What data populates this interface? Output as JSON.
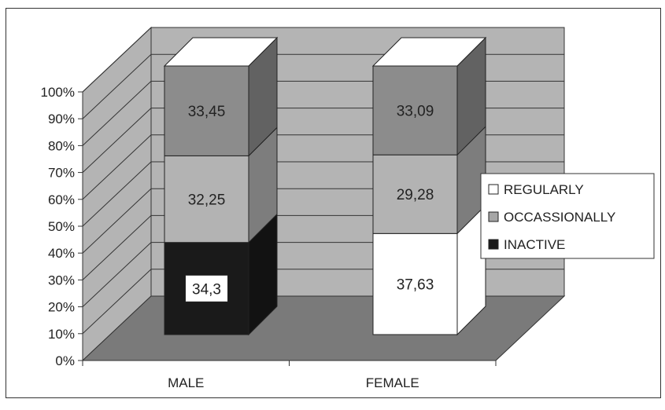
{
  "chart_data": {
    "type": "bar",
    "subtype": "stacked-100-3d",
    "categories": [
      "MALE",
      "FEMALE"
    ],
    "series": [
      {
        "name": "INACTIVE",
        "color": "#1a1a1a",
        "values": [
          34.3,
          0
        ]
      },
      {
        "name": "REGULARLY",
        "color": "#ffffff",
        "values": [
          0,
          37.63
        ]
      },
      {
        "name": "OCCASSIONALLY",
        "color": "#b3b3b3",
        "values": [
          32.25,
          29.28
        ]
      },
      {
        "name": "",
        "color": "#8c8c8c",
        "values": [
          33.45,
          33.09
        ]
      }
    ],
    "data_labels": {
      "MALE": [
        "34,3",
        "32,25",
        "33,45"
      ],
      "FEMALE": [
        "37,63",
        "29,28",
        "33,09"
      ]
    },
    "y_ticks": [
      "0%",
      "10%",
      "20%",
      "30%",
      "40%",
      "50%",
      "60%",
      "70%",
      "80%",
      "90%",
      "100%"
    ],
    "ylim": [
      0,
      100
    ],
    "grid": true,
    "legend": {
      "placement": "right",
      "entries": [
        {
          "label": "REGULARLY",
          "color": "#ffffff"
        },
        {
          "label": "OCCASSIONALLY",
          "color": "#a6a6a6"
        },
        {
          "label": "INACTIVE",
          "color": "#1a1a1a"
        }
      ]
    },
    "title": "",
    "xlabel": "",
    "ylabel": ""
  }
}
